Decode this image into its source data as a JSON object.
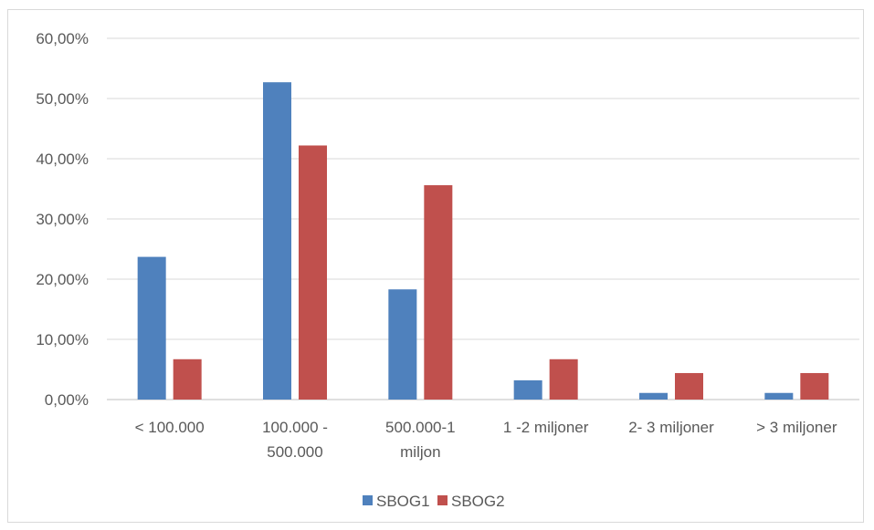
{
  "chart_data": {
    "type": "bar",
    "title": "",
    "xlabel": "",
    "ylabel": "",
    "ylim": [
      0,
      60
    ],
    "y_tick_values": [
      0,
      10,
      20,
      30,
      40,
      50,
      60
    ],
    "y_tick_labels": [
      "0,00%",
      "10,00%",
      "20,00%",
      "30,00%",
      "40,00%",
      "50,00%",
      "60,00%"
    ],
    "categories": [
      [
        "< 100.000"
      ],
      [
        "100.000 -",
        "500.000"
      ],
      [
        "500.000-1",
        "miljon"
      ],
      [
        "1 -2 miljoner"
      ],
      [
        "2- 3 miljoner"
      ],
      [
        "> 3 miljoner"
      ]
    ],
    "series": [
      {
        "name": "SBOG1",
        "color": "#4f81bd",
        "values": [
          23.7,
          52.7,
          18.3,
          3.2,
          1.1,
          1.1
        ]
      },
      {
        "name": "SBOG2",
        "color": "#c0504d",
        "values": [
          6.7,
          42.2,
          35.6,
          6.7,
          4.4,
          4.4
        ]
      }
    ],
    "grid": true,
    "legend_position": "bottom"
  }
}
